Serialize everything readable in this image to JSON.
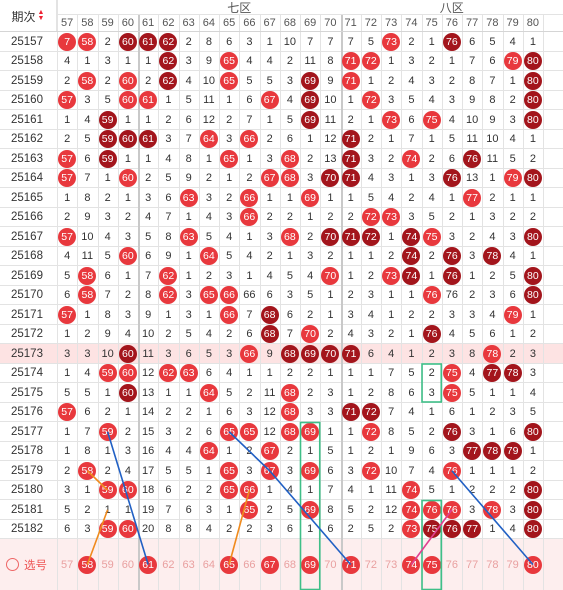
{
  "header": {
    "period_label": "期次",
    "zone7_label": "七区",
    "zone8_label": "八区"
  },
  "columns": [
    "57",
    "58",
    "59",
    "60",
    "61",
    "62",
    "63",
    "64",
    "65",
    "66",
    "67",
    "68",
    "69",
    "70",
    "71",
    "72",
    "73",
    "74",
    "75",
    "76",
    "77",
    "78",
    "79",
    "80"
  ],
  "select_label": "选号",
  "colors": {
    "ball_red": "#e8383d",
    "ball_dark": "#a3151c",
    "highlight_row": "#fde3e3",
    "select_row": "#fdeeee",
    "grid_line": "#e3e3e3",
    "green_box": "#3fbf88",
    "blue_line": "#2160c4",
    "orange_line": "#f08a1c"
  },
  "rows": [
    {
      "issue": "25157",
      "cells": [
        "7",
        "58",
        "2",
        "60",
        "61",
        "62",
        "2",
        "8",
        "6",
        "3",
        "1",
        "10",
        "7",
        "7",
        "7",
        "5",
        "73",
        "2",
        "1",
        "76",
        "6",
        "5",
        "4",
        "1"
      ],
      "balls": [
        "r",
        "r",
        "",
        "d",
        "d",
        "d",
        "",
        "",
        "",
        "",
        "",
        "",
        "",
        "",
        "",
        "",
        "r",
        "",
        "",
        "d",
        "",
        "",
        "",
        ""
      ]
    },
    {
      "issue": "25158",
      "cells": [
        "4",
        "1",
        "3",
        "1",
        "1",
        "62",
        "3",
        "9",
        "65",
        "4",
        "4",
        "2",
        "11",
        "8",
        "71",
        "72",
        "1",
        "3",
        "2",
        "1",
        "7",
        "6",
        "79",
        "80"
      ],
      "balls": [
        "",
        "",
        "",
        "",
        "",
        "d",
        "",
        "",
        "r",
        "",
        "",
        "",
        "",
        "",
        "r",
        "r",
        "",
        "",
        "",
        "",
        "",
        "",
        "r",
        "d"
      ]
    },
    {
      "issue": "25159",
      "cells": [
        "2",
        "58",
        "2",
        "60",
        "2",
        "62",
        "4",
        "10",
        "65",
        "5",
        "5",
        "3",
        "69",
        "9",
        "71",
        "1",
        "2",
        "4",
        "3",
        "2",
        "8",
        "7",
        "1",
        "80"
      ],
      "balls": [
        "",
        "r",
        "",
        "r",
        "",
        "d",
        "",
        "",
        "r",
        "",
        "",
        "",
        "d",
        "",
        "r",
        "",
        "",
        "",
        "",
        "",
        "",
        "",
        "",
        "d"
      ]
    },
    {
      "issue": "25160",
      "cells": [
        "57",
        "3",
        "5",
        "60",
        "61",
        "1",
        "5",
        "11",
        "1",
        "6",
        "67",
        "4",
        "69",
        "10",
        "1",
        "72",
        "3",
        "5",
        "4",
        "3",
        "9",
        "8",
        "2",
        "80"
      ],
      "balls": [
        "r",
        "",
        "",
        "r",
        "r",
        "",
        "",
        "",
        "",
        "",
        "r",
        "",
        "d",
        "",
        "",
        "r",
        "",
        "",
        "",
        "",
        "",
        "",
        "",
        "d"
      ]
    },
    {
      "issue": "25161",
      "cells": [
        "1",
        "4",
        "59",
        "1",
        "1",
        "2",
        "6",
        "12",
        "2",
        "7",
        "1",
        "5",
        "69",
        "11",
        "2",
        "1",
        "73",
        "6",
        "75",
        "4",
        "10",
        "9",
        "3",
        "80"
      ],
      "balls": [
        "",
        "",
        "d",
        "",
        "",
        "",
        "",
        "",
        "",
        "",
        "",
        "",
        "d",
        "",
        "",
        "",
        "r",
        "",
        "r",
        "",
        "",
        "",
        "",
        "d"
      ]
    },
    {
      "issue": "25162",
      "cells": [
        "2",
        "5",
        "59",
        "60",
        "61",
        "3",
        "7",
        "64",
        "3",
        "66",
        "2",
        "6",
        "1",
        "12",
        "71",
        "2",
        "1",
        "7",
        "1",
        "5",
        "11",
        "10",
        "4",
        "1"
      ],
      "balls": [
        "",
        "",
        "d",
        "d",
        "d",
        "",
        "",
        "r",
        "",
        "r",
        "",
        "",
        "",
        "",
        "d",
        "",
        "",
        "",
        "",
        "",
        "",
        "",
        "",
        ""
      ]
    },
    {
      "issue": "25163",
      "cells": [
        "57",
        "6",
        "59",
        "1",
        "1",
        "4",
        "8",
        "1",
        "65",
        "1",
        "3",
        "68",
        "2",
        "13",
        "71",
        "3",
        "2",
        "74",
        "2",
        "6",
        "76",
        "11",
        "5",
        "2"
      ],
      "balls": [
        "r",
        "",
        "d",
        "",
        "",
        "",
        "",
        "",
        "r",
        "",
        "",
        "r",
        "",
        "",
        "d",
        "",
        "",
        "r",
        "",
        "",
        "d",
        "",
        "",
        ""
      ]
    },
    {
      "issue": "25164",
      "cells": [
        "57",
        "7",
        "1",
        "60",
        "2",
        "5",
        "9",
        "2",
        "1",
        "2",
        "67",
        "68",
        "3",
        "70",
        "71",
        "4",
        "3",
        "1",
        "3",
        "76",
        "13",
        "1",
        "79",
        "80"
      ],
      "balls": [
        "r",
        "",
        "",
        "r",
        "",
        "",
        "",
        "",
        "",
        "",
        "r",
        "r",
        "",
        "d",
        "d",
        "",
        "",
        "",
        "",
        "d",
        "",
        "",
        "r",
        "d"
      ]
    },
    {
      "issue": "25165",
      "cells": [
        "1",
        "8",
        "2",
        "1",
        "3",
        "6",
        "63",
        "3",
        "2",
        "66",
        "1",
        "1",
        "69",
        "1",
        "1",
        "5",
        "4",
        "2",
        "4",
        "1",
        "77",
        "2",
        "1",
        "1"
      ],
      "balls": [
        "",
        "",
        "",
        "",
        "",
        "",
        "r",
        "",
        "",
        "r",
        "",
        "",
        "r",
        "",
        "",
        "",
        "",
        "",
        "",
        "",
        "r",
        "",
        "",
        ""
      ]
    },
    {
      "issue": "25166",
      "cells": [
        "2",
        "9",
        "3",
        "2",
        "4",
        "7",
        "1",
        "4",
        "3",
        "66",
        "2",
        "2",
        "1",
        "2",
        "2",
        "72",
        "73",
        "3",
        "5",
        "2",
        "1",
        "3",
        "2",
        "2"
      ],
      "balls": [
        "",
        "",
        "",
        "",
        "",
        "",
        "",
        "",
        "",
        "r",
        "",
        "",
        "",
        "",
        "",
        "r",
        "r",
        "",
        "",
        "",
        "",
        "",
        "",
        ""
      ]
    },
    {
      "issue": "25167",
      "cells": [
        "57",
        "10",
        "4",
        "3",
        "5",
        "8",
        "63",
        "5",
        "4",
        "1",
        "3",
        "68",
        "2",
        "70",
        "71",
        "72",
        "1",
        "74",
        "75",
        "3",
        "2",
        "4",
        "3",
        "80"
      ],
      "balls": [
        "r",
        "",
        "",
        "",
        "",
        "",
        "r",
        "",
        "",
        "",
        "",
        "r",
        "",
        "d",
        "d",
        "d",
        "",
        "d",
        "r",
        "",
        "",
        "",
        "",
        "d"
      ]
    },
    {
      "issue": "25168",
      "cells": [
        "4",
        "11",
        "5",
        "60",
        "6",
        "9",
        "1",
        "64",
        "5",
        "4",
        "2",
        "1",
        "3",
        "2",
        "1",
        "1",
        "2",
        "74",
        "2",
        "76",
        "3",
        "78",
        "4",
        "1"
      ],
      "balls": [
        "",
        "",
        "",
        "r",
        "",
        "",
        "",
        "r",
        "",
        "",
        "",
        "",
        "",
        "",
        "",
        "",
        "",
        "d",
        "",
        "d",
        "",
        "d",
        "",
        ""
      ]
    },
    {
      "issue": "25169",
      "cells": [
        "5",
        "58",
        "6",
        "1",
        "7",
        "62",
        "1",
        "2",
        "3",
        "1",
        "4",
        "5",
        "4",
        "70",
        "1",
        "2",
        "73",
        "74",
        "1",
        "76",
        "1",
        "2",
        "5",
        "80"
      ],
      "balls": [
        "",
        "r",
        "",
        "",
        "",
        "r",
        "",
        "",
        "",
        "",
        "",
        "",
        "",
        "r",
        "",
        "",
        "r",
        "d",
        "",
        "d",
        "",
        "",
        "",
        "d"
      ]
    },
    {
      "issue": "25170",
      "cells": [
        "6",
        "58",
        "7",
        "2",
        "8",
        "62",
        "3",
        "65",
        "66",
        "66",
        "6",
        "3",
        "5",
        "1",
        "2",
        "3",
        "1",
        "1",
        "76",
        "76",
        "2",
        "3",
        "6",
        "80"
      ],
      "balls": [
        "",
        "r",
        "",
        "",
        "",
        "r",
        "",
        "r",
        "r",
        "",
        "",
        "",
        "",
        "",
        "",
        "",
        "",
        "",
        "r",
        "",
        "",
        "",
        "",
        "d"
      ]
    },
    {
      "issue": "25171",
      "cells": [
        "57",
        "1",
        "8",
        "3",
        "9",
        "1",
        "3",
        "1",
        "66",
        "7",
        "68",
        "6",
        "2",
        "1",
        "3",
        "4",
        "1",
        "2",
        "2",
        "3",
        "3",
        "4",
        "79",
        "1"
      ],
      "balls": [
        "r",
        "",
        "",
        "",
        "",
        "",
        "",
        "",
        "r",
        "",
        "d",
        "",
        "",
        "",
        "",
        "",
        "",
        "",
        "",
        "",
        "",
        "",
        "r",
        ""
      ]
    },
    {
      "issue": "25172",
      "cells": [
        "1",
        "2",
        "9",
        "4",
        "10",
        "2",
        "5",
        "4",
        "2",
        "6",
        "68",
        "7",
        "70",
        "2",
        "4",
        "3",
        "2",
        "1",
        "76",
        "4",
        "5",
        "6",
        "1",
        "2"
      ],
      "balls": [
        "",
        "",
        "",
        "",
        "",
        "",
        "",
        "",
        "",
        "",
        "d",
        "",
        "r",
        "",
        "",
        "",
        "",
        "",
        "d",
        "",
        "",
        "",
        "",
        ""
      ]
    },
    {
      "issue": "25173",
      "cells": [
        "3",
        "3",
        "10",
        "60",
        "11",
        "3",
        "6",
        "5",
        "3",
        "66",
        "9",
        "68",
        "69",
        "70",
        "71",
        "6",
        "4",
        "1",
        "2",
        "3",
        "8",
        "78",
        "2",
        "3"
      ],
      "balls": [
        "",
        "",
        "",
        "d",
        "",
        "",
        "",
        "",
        "",
        "r",
        "",
        "d",
        "d",
        "d",
        "d",
        "",
        "",
        "",
        "",
        "",
        "",
        "r",
        "",
        ""
      ]
    },
    {
      "issue": "25174",
      "cells": [
        "1",
        "4",
        "59",
        "60",
        "12",
        "62",
        "63",
        "6",
        "4",
        "1",
        "1",
        "2",
        "2",
        "1",
        "1",
        "1",
        "7",
        "5",
        "2",
        "75",
        "4",
        "77",
        "78",
        "3"
      ],
      "balls": [
        "",
        "",
        "r",
        "r",
        "",
        "r",
        "r",
        "",
        "",
        "",
        "",
        "",
        "",
        "",
        "",
        "",
        "",
        "",
        "",
        "r",
        "",
        "d",
        "d",
        ""
      ]
    },
    {
      "issue": "25175",
      "cells": [
        "5",
        "5",
        "1",
        "60",
        "13",
        "1",
        "1",
        "64",
        "5",
        "2",
        "11",
        "68",
        "2",
        "3",
        "1",
        "2",
        "8",
        "6",
        "3",
        "75",
        "5",
        "1",
        "1",
        "4"
      ],
      "balls": [
        "",
        "",
        "",
        "d",
        "",
        "",
        "",
        "r",
        "",
        "",
        "",
        "r",
        "",
        "",
        "",
        "",
        "",
        "",
        "",
        "r",
        "",
        "",
        "",
        ""
      ]
    },
    {
      "issue": "25176",
      "cells": [
        "57",
        "6",
        "2",
        "1",
        "14",
        "2",
        "2",
        "1",
        "6",
        "3",
        "12",
        "68",
        "3",
        "3",
        "71",
        "72",
        "7",
        "4",
        "1",
        "6",
        "1",
        "2",
        "3",
        "5"
      ],
      "balls": [
        "r",
        "",
        "",
        "",
        "",
        "",
        "",
        "",
        "",
        "",
        "",
        "r",
        "",
        "",
        "d",
        "d",
        "",
        "",
        "",
        "",
        "",
        "",
        "",
        ""
      ]
    },
    {
      "issue": "25177",
      "cells": [
        "1",
        "7",
        "59",
        "2",
        "15",
        "3",
        "2",
        "6",
        "65",
        "65",
        "12",
        "68",
        "69",
        "1",
        "1",
        "72",
        "8",
        "5",
        "2",
        "76",
        "3",
        "1",
        "6",
        "80"
      ],
      "balls": [
        "",
        "",
        "r",
        "",
        "",
        "",
        "",
        "",
        "r",
        "r",
        "",
        "r",
        "r",
        "",
        "",
        "r",
        "",
        "",
        "",
        "d",
        "",
        "",
        "",
        "d"
      ]
    },
    {
      "issue": "25178",
      "cells": [
        "1",
        "8",
        "1",
        "3",
        "16",
        "4",
        "4",
        "64",
        "1",
        "2",
        "67",
        "2",
        "1",
        "5",
        "1",
        "2",
        "1",
        "9",
        "6",
        "3",
        "77",
        "78",
        "79",
        "1"
      ],
      "balls": [
        "",
        "",
        "",
        "",
        "",
        "",
        "",
        "r",
        "",
        "",
        "r",
        "",
        "",
        "",
        "",
        "",
        "",
        "",
        "",
        "",
        "d",
        "d",
        "d",
        ""
      ]
    },
    {
      "issue": "25179",
      "cells": [
        "2",
        "58",
        "2",
        "4",
        "17",
        "5",
        "5",
        "1",
        "65",
        "3",
        "67",
        "3",
        "69",
        "6",
        "3",
        "72",
        "10",
        "7",
        "4",
        "76",
        "1",
        "1",
        "1",
        "2"
      ],
      "balls": [
        "",
        "r",
        "",
        "",
        "",
        "",
        "",
        "",
        "r",
        "",
        "r",
        "",
        "r",
        "",
        "",
        "r",
        "",
        "",
        "",
        "r",
        "",
        "",
        "",
        ""
      ]
    },
    {
      "issue": "25180",
      "cells": [
        "3",
        "1",
        "59",
        "60",
        "18",
        "6",
        "2",
        "2",
        "65",
        "66",
        "1",
        "4",
        "1",
        "7",
        "4",
        "1",
        "11",
        "74",
        "5",
        "1",
        "2",
        "2",
        "2",
        "80"
      ],
      "balls": [
        "",
        "",
        "r",
        "r",
        "",
        "",
        "",
        "",
        "r",
        "r",
        "",
        "",
        "",
        "",
        "",
        "",
        "",
        "r",
        "",
        "",
        "",
        "",
        "",
        "d"
      ]
    },
    {
      "issue": "25181",
      "cells": [
        "5",
        "2",
        "1",
        "1",
        "19",
        "7",
        "6",
        "3",
        "1",
        "65",
        "2",
        "5",
        "69",
        "8",
        "5",
        "2",
        "12",
        "74",
        "76",
        "76",
        "3",
        "78",
        "3",
        "80"
      ],
      "balls": [
        "",
        "",
        "",
        "",
        "",
        "",
        "",
        "",
        "",
        "r",
        "",
        "",
        "r",
        "",
        "",
        "",
        "",
        "r",
        "r",
        "r",
        "",
        "r",
        "",
        "d"
      ]
    },
    {
      "issue": "25182",
      "cells": [
        "6",
        "3",
        "59",
        "60",
        "20",
        "8",
        "8",
        "4",
        "2",
        "2",
        "3",
        "6",
        "1",
        "6",
        "2",
        "5",
        "2",
        "73",
        "75",
        "76",
        "77",
        "1",
        "4",
        "80"
      ],
      "balls": [
        "",
        "",
        "r",
        "r",
        "",
        "",
        "",
        "",
        "",
        "",
        "",
        "",
        "",
        "",
        "",
        "",
        "",
        "r",
        "d",
        "d",
        "d",
        "",
        "",
        "d"
      ]
    }
  ],
  "select_row": {
    "balls": [
      "",
      "58",
      "",
      "",
      "61",
      "",
      "",
      "",
      "65",
      "",
      "67",
      "",
      "69",
      "",
      "71",
      "",
      "",
      "74",
      "75",
      "",
      "",
      "",
      "",
      "80"
    ]
  }
}
